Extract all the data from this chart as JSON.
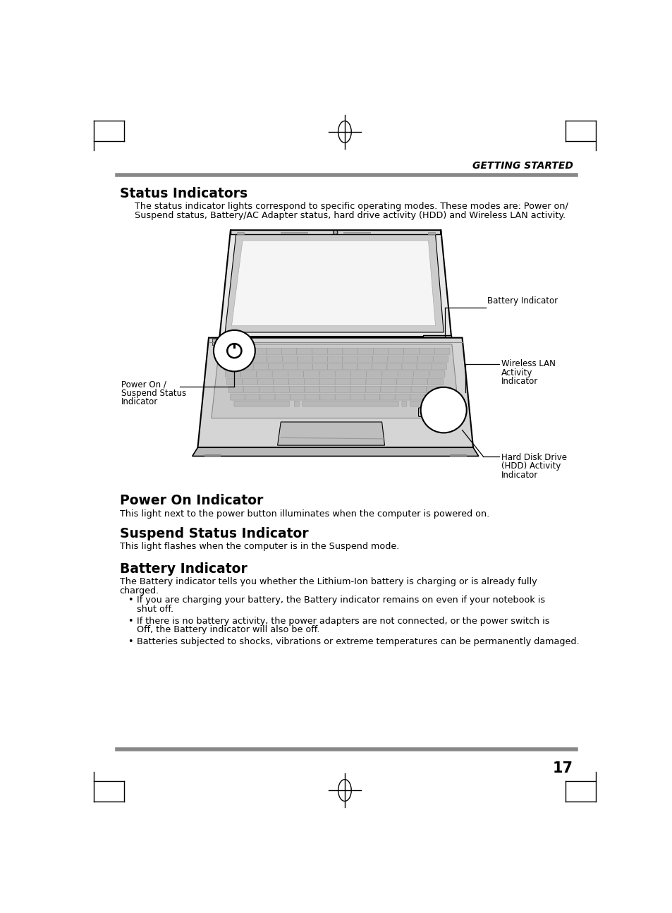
{
  "page_bg": "#ffffff",
  "header_text": "GETTING STARTED",
  "header_line_color": "#888888",
  "title1": "Status Indicators",
  "body1_line1": "The status indicator lights correspond to specific operating modes. These modes are: Power on/",
  "body1_line2": "Suspend status, Battery/AC Adapter status, hard drive activity (HDD) and Wireless LAN activity.",
  "section2_title": "Power On Indicator",
  "section2_body": "This light next to the power button illuminates when the computer is powered on.",
  "section3_title": "Suspend Status Indicator",
  "section3_body": "This light flashes when the computer is in the Suspend mode.",
  "section4_title": "Battery Indicator",
  "section4_body_line1": "The Battery indicator tells you whether the Lithium-Ion battery is charging or is already fully",
  "section4_body_line2": "charged.",
  "bullet1_line1": "If you are charging your battery, the Battery indicator remains on even if your notebook is",
  "bullet1_line2": "shut off.",
  "bullet2_line1": "If there is no battery activity, the power adapters are not connected, or the power switch is",
  "bullet2_line2": "Off, the Battery indicator will also be off.",
  "bullet3": "Batteries subjected to shocks, vibrations or extreme temperatures can be permanently damaged.",
  "label_battery": "Battery Indicator",
  "label_wireless_1": "Wireless LAN",
  "label_wireless_2": "Activity",
  "label_wireless_3": "Indicator",
  "label_power_1": "Power On /",
  "label_power_2": "Suspend Status",
  "label_power_3": "Indicator",
  "label_hdd_1": "Hard Disk Drive",
  "label_hdd_2": "(HDD) Activity",
  "label_hdd_3": "Indicator",
  "page_number": "17",
  "footer_line_color": "#888888",
  "text_color": "#000000"
}
